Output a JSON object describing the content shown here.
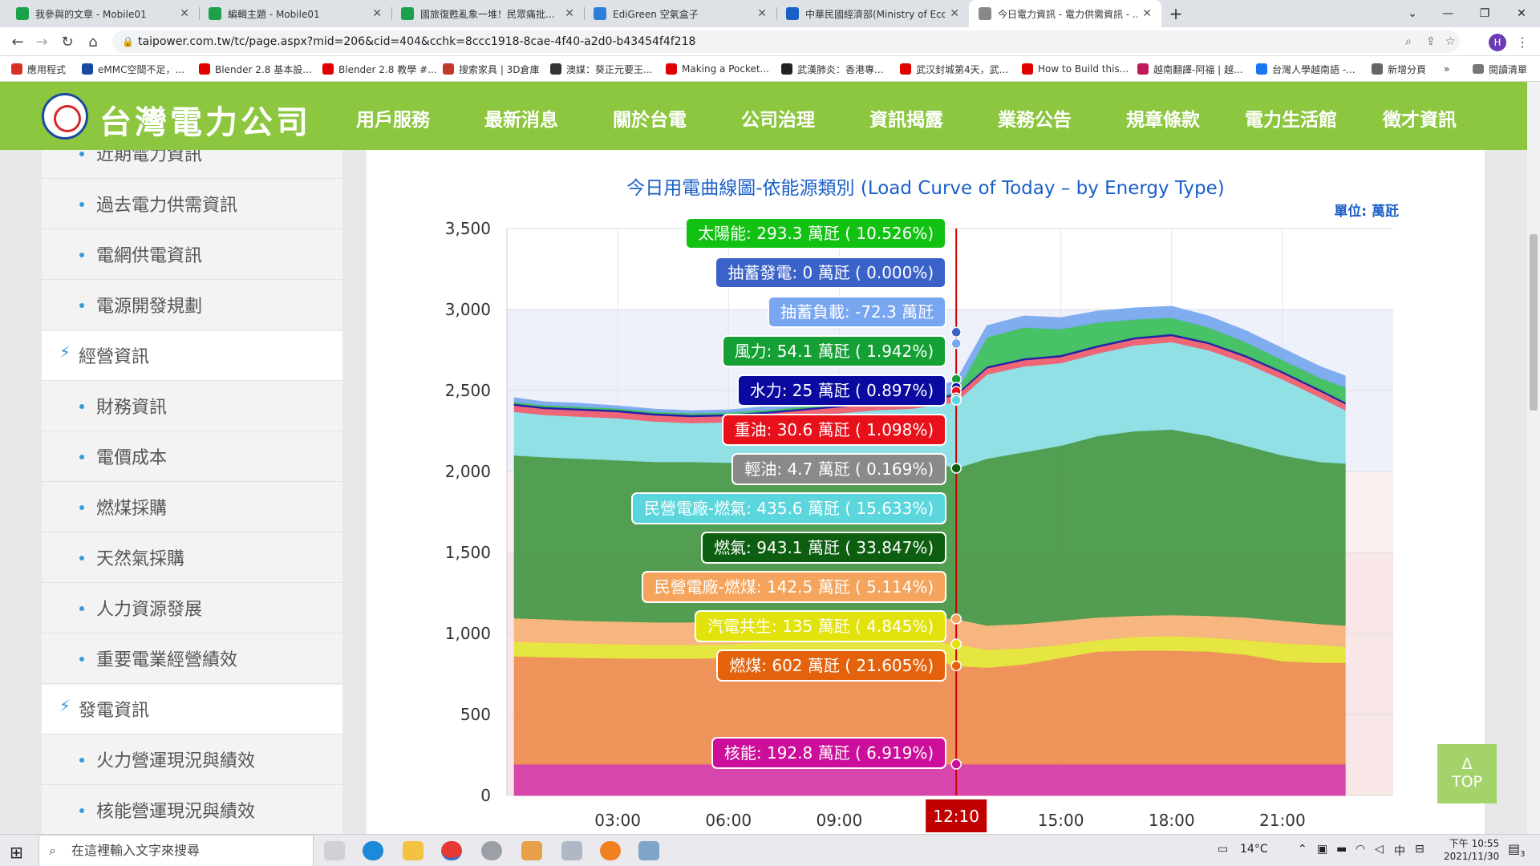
{
  "browser": {
    "tabs": [
      {
        "title": "我參與的文章 - Mobile01",
        "color": "#1aa14a",
        "active": false
      },
      {
        "title": "編輯主題 - Mobile01",
        "color": "#1aa14a",
        "active": false
      },
      {
        "title": "國旅復甦亂象一堆！民眾痛批...",
        "color": "#1aa14a",
        "active": false
      },
      {
        "title": "EdiGreen 空氣盒子",
        "color": "#2c7fd8",
        "active": false
      },
      {
        "title": "中華民國經濟部(Ministry of Eco...",
        "color": "#1a5fc8",
        "active": false
      },
      {
        "title": "今日電力資訊 - 電力供需資訊 - ...",
        "color": "#888888",
        "active": true
      }
    ],
    "new_tab": "+",
    "url": "taipower.com.tw/tc/page.aspx?mid=206&cid=404&cchk=8ccc1918-8cae-4f40-a2d0-b43454f4f218",
    "avatar": "H",
    "bookmarks": [
      {
        "label": "應用程式",
        "color": "#d93025"
      },
      {
        "label": "eMMC空間不足，...",
        "color": "#1a4aa0"
      },
      {
        "label": "Blender 2.8 基本設...",
        "color": "#e00000"
      },
      {
        "label": "Blender 2.8 教學 #...",
        "color": "#e00000"
      },
      {
        "label": "搜索家具 | 3D倉庫",
        "color": "#c0392b"
      },
      {
        "label": "澳媒：葵正元要王...",
        "color": "#333333"
      },
      {
        "label": "Making a Pocket...",
        "color": "#e00000"
      },
      {
        "label": "武漢肺炎：香港專...",
        "color": "#222222"
      },
      {
        "label": "武汉封城第4天，武...",
        "color": "#e00000"
      },
      {
        "label": "How to Build this...",
        "color": "#e00000"
      },
      {
        "label": "越南翻譯-阿福 | 越...",
        "color": "#c2185b"
      },
      {
        "label": "台灣人學越南語 -...",
        "color": "#1877f2"
      },
      {
        "label": "新增分頁",
        "color": "#666666"
      }
    ],
    "bookmarks_more": "»",
    "reading_list": "閱讀清單"
  },
  "site": {
    "logo_text": "台灣電力公司",
    "menu": [
      "用戶服務",
      "最新消息",
      "關於台電",
      "公司治理",
      "資訊揭露",
      "業務公告",
      "規章條款",
      "電力生活館",
      "徵才資訊"
    ],
    "active_menu_index": 4
  },
  "sidebar": {
    "items": [
      {
        "label": "近期電力資訊",
        "type": "sub"
      },
      {
        "label": "過去電力供需資訊",
        "type": "sub"
      },
      {
        "label": "電網供電資訊",
        "type": "sub"
      },
      {
        "label": "電源開發規劃",
        "type": "sub"
      },
      {
        "label": "經營資訊",
        "type": "cat"
      },
      {
        "label": "財務資訊",
        "type": "sub"
      },
      {
        "label": "電價成本",
        "type": "sub"
      },
      {
        "label": "燃煤採購",
        "type": "sub"
      },
      {
        "label": "天然氣採購",
        "type": "sub"
      },
      {
        "label": "人力資源發展",
        "type": "sub"
      },
      {
        "label": "重要電業經營績效",
        "type": "sub"
      },
      {
        "label": "發電資訊",
        "type": "cat"
      },
      {
        "label": "火力營運現況與績效",
        "type": "sub"
      },
      {
        "label": "核能營運現況與績效",
        "type": "sub"
      }
    ]
  },
  "chart_data": {
    "type": "area",
    "title": "今日用電曲線圖-依能源類別 (Load Curve of Today – by Energy Type)",
    "unit_label": "單位: 萬瓩",
    "y_ticks": [
      "3,500",
      "3,000",
      "2,500",
      "2,000",
      "1,500",
      "1,000",
      "500",
      "0"
    ],
    "ylim": [
      0,
      3500
    ],
    "x_ticks": [
      "03:00",
      "06:00",
      "09:00",
      "15:00",
      "18:00",
      "21:00"
    ],
    "x_hours": [
      3,
      6,
      9,
      15,
      18,
      21
    ],
    "xlim": [
      0,
      24
    ],
    "current_time_label": "12:10",
    "current_time_hour": 12.1667,
    "data_end_hour": 22.7,
    "grid": true,
    "stack_order_bottom_to_top": [
      "核能",
      "燃煤",
      "汽電共生",
      "民營電廠-燃煤",
      "燃氣",
      "民營電廠-燃氣",
      "輕油",
      "重油",
      "水力",
      "風力",
      "抽蓄負載",
      "抽蓄發電",
      "太陽能"
    ],
    "stack_colors": [
      "#d63ea8",
      "#ee8f52",
      "#e6e63a",
      "#f7b47a",
      "#4a9a4a",
      "#8ce0e4",
      "#8a8a8a",
      "#f06070",
      "#1a1aa8",
      "#40c060",
      "#7aaaf0",
      "#4466cc",
      "#46d846"
    ],
    "hours": [
      0.2,
      1,
      2,
      3,
      4,
      5,
      6,
      7,
      8,
      9,
      10,
      11,
      12.1667,
      13,
      14,
      15,
      16,
      17,
      18,
      19,
      20,
      21,
      22,
      22.7
    ],
    "stack_totals": {
      "top": [
        2455,
        2430,
        2420,
        2405,
        2385,
        2375,
        2380,
        2400,
        2420,
        2450,
        2470,
        2480,
        2560,
        2900,
        2960,
        2950,
        2990,
        3010,
        3020,
        2960,
        2870,
        2760,
        2650,
        2590
      ],
      "hydro_band_top": [
        2420,
        2400,
        2390,
        2380,
        2360,
        2350,
        2355,
        2370,
        2390,
        2410,
        2430,
        2440,
        2480,
        2650,
        2700,
        2720,
        2780,
        2830,
        2850,
        2800,
        2720,
        2620,
        2510,
        2430
      ],
      "gas_top": [
        2100,
        2090,
        2080,
        2070,
        2060,
        2060,
        2055,
        2060,
        2070,
        2080,
        2090,
        2095,
        2020,
        2080,
        2120,
        2160,
        2220,
        2250,
        2260,
        2220,
        2160,
        2100,
        2060,
        2050
      ],
      "coal_private_top": [
        1095,
        1090,
        1080,
        1075,
        1070,
        1070,
        1075,
        1085,
        1095,
        1100,
        1110,
        1110,
        1090,
        1050,
        1060,
        1080,
        1100,
        1110,
        1115,
        1110,
        1100,
        1080,
        1060,
        1050
      ],
      "cogen_top": [
        950,
        945,
        940,
        935,
        930,
        930,
        935,
        945,
        950,
        955,
        960,
        965,
        935,
        900,
        910,
        930,
        960,
        980,
        985,
        975,
        960,
        940,
        930,
        920
      ],
      "coal_top": [
        860,
        855,
        850,
        848,
        845,
        845,
        850,
        855,
        860,
        865,
        870,
        872,
        800,
        790,
        810,
        850,
        890,
        895,
        895,
        890,
        870,
        830,
        820,
        820
      ],
      "nuclear_top": [
        192.8,
        192.8,
        192.8,
        192.8,
        192.8,
        192.8,
        192.8,
        192.8,
        192.8,
        192.8,
        192.8,
        192.8,
        192.8,
        192.8,
        192.8,
        192.8,
        192.8,
        192.8,
        192.8,
        192.8,
        192.8,
        192.8,
        192.8,
        192.8
      ]
    },
    "tooltips": [
      {
        "label": "太陽能: 293.3 萬瓩 ( 10.526%)",
        "color": "#12c212",
        "marker_value": null
      },
      {
        "label": "抽蓄發電: 0 萬瓩 ( 0.000%)",
        "color": "#3a62c8",
        "marker_value": 2860
      },
      {
        "label": "抽蓄負載: -72.3 萬瓩",
        "color": "#78a6f0",
        "marker_value": 2790
      },
      {
        "label": "風力: 54.1 萬瓩 ( 1.942%)",
        "color": "#15a035",
        "marker_value": 2570
      },
      {
        "label": "水力: 25 萬瓩 ( 0.897%)",
        "color": "#0a0aa0",
        "marker_value": 2520
      },
      {
        "label": "重油: 30.6 萬瓩 ( 1.098%)",
        "color": "#e8101a",
        "marker_value": 2495
      },
      {
        "label": "輕油: 4.7 萬瓩 ( 0.169%)",
        "color": "#8a8a8a",
        "marker_value": 2455
      },
      {
        "label": "民營電廠-燃氣: 435.6 萬瓩 ( 15.633%)",
        "color": "#5ad6dc",
        "marker_value": 2440
      },
      {
        "label": "燃氣: 943.1 萬瓩 ( 33.847%)",
        "color": "#0d5e10",
        "marker_value": 2020
      },
      {
        "label": "民營電廠-燃煤: 142.5 萬瓩 ( 5.114%)",
        "color": "#f4a45c",
        "marker_value": 1090
      },
      {
        "label": "汽電共生: 135 萬瓩 ( 4.845%)",
        "color": "#e2e20c",
        "marker_value": 935
      },
      {
        "label": "燃煤: 602 萬瓩 ( 21.605%)",
        "color": "#e4620c",
        "marker_value": 800
      },
      {
        "label": "核能: 192.8 萬瓩 ( 6.919%)",
        "color": "#cc0f9a",
        "marker_value": 192.8
      }
    ]
  },
  "top_button": {
    "arrow": "Δ",
    "label": "TOP"
  },
  "taskbar": {
    "search_placeholder": "在這裡輸入文字來搜尋",
    "weather": "14°C",
    "ime": "中",
    "clock_line1": "下午 10:55",
    "clock_line2": "2021/11/30",
    "notification_count": "3"
  }
}
